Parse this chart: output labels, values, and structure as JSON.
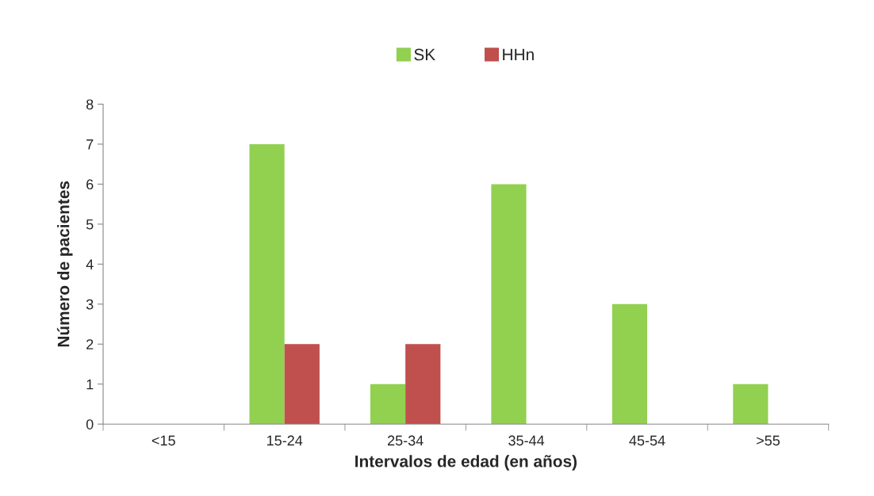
{
  "chart_data": {
    "type": "bar",
    "xlabel": "Intervalos de edad (en años)",
    "ylabel": "Número de pacientes",
    "categories": [
      "<15",
      "15-24",
      "25-34",
      "35-44",
      "45-54",
      ">55"
    ],
    "series": [
      {
        "name": "SK",
        "color": "#92d050",
        "values": [
          0,
          7,
          1,
          6,
          3,
          1
        ]
      },
      {
        "name": "HHn",
        "color": "#c0504d",
        "values": [
          0,
          2,
          2,
          0,
          0,
          0
        ]
      }
    ],
    "ylim": [
      0,
      8
    ],
    "yticks": [
      0,
      1,
      2,
      3,
      4,
      5,
      6,
      7,
      8
    ],
    "grid": false,
    "legend": "top"
  }
}
